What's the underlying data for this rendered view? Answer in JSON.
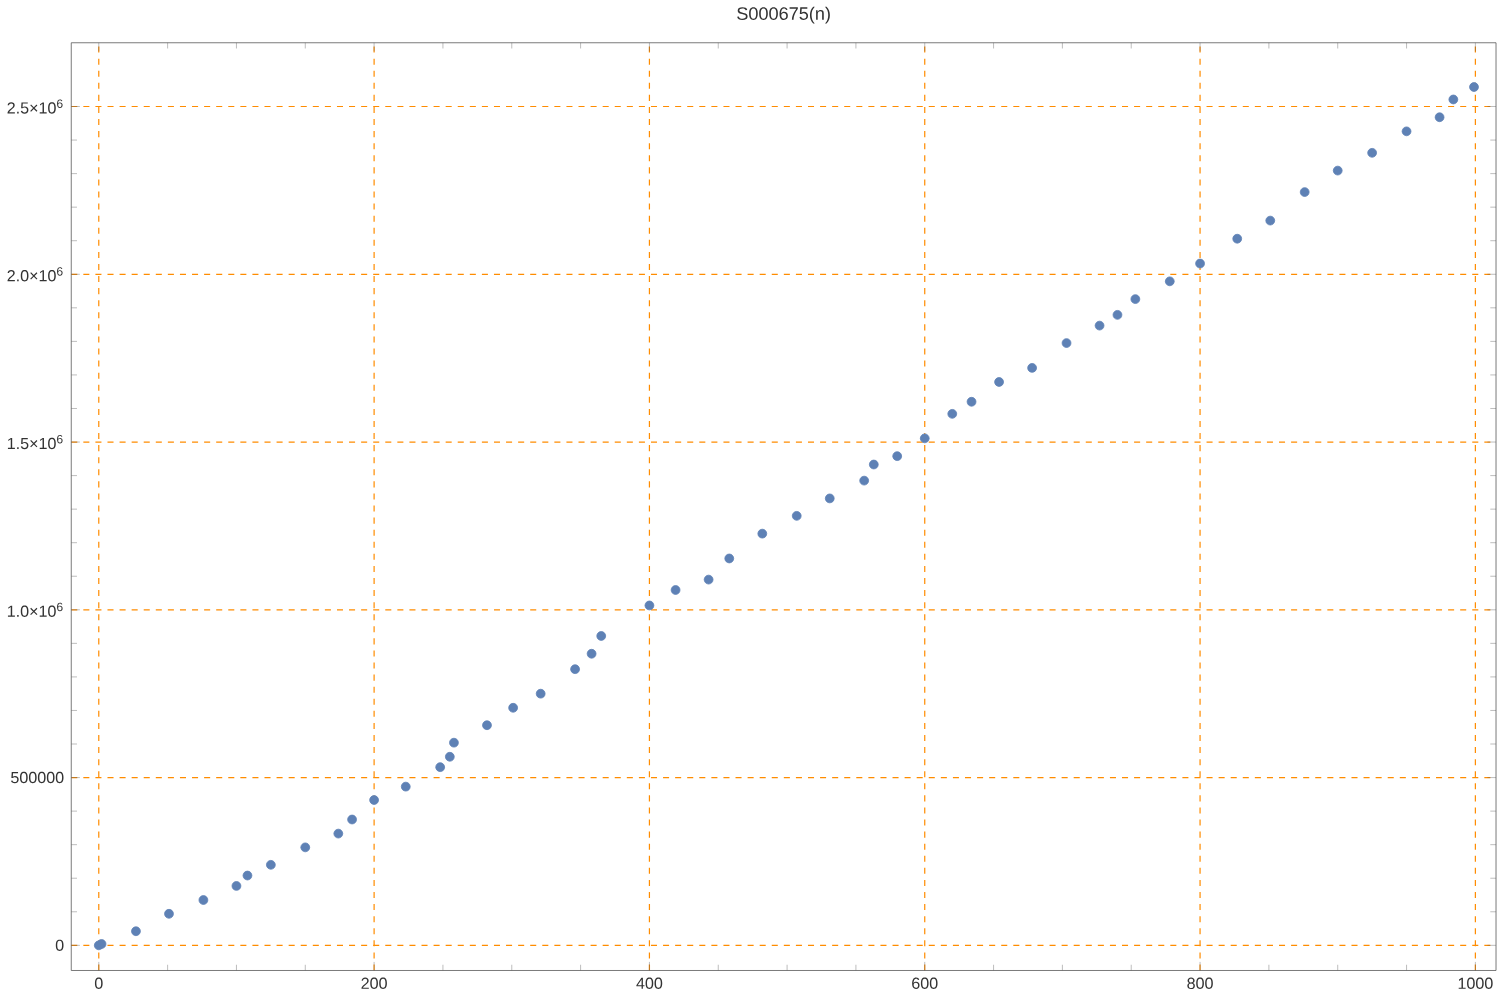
{
  "chart_data": {
    "type": "scatter",
    "title": "S000675(n)",
    "x": [
      0,
      2,
      27,
      51,
      76,
      100,
      108,
      125,
      150,
      174,
      184,
      200,
      223,
      248,
      255,
      258,
      282,
      301,
      321,
      346,
      358,
      365,
      400,
      419,
      443,
      458,
      482,
      507,
      531,
      556,
      563,
      580,
      600,
      620,
      634,
      654,
      678,
      703,
      727,
      740,
      753,
      778,
      800,
      827,
      851,
      876,
      900,
      925,
      950,
      974,
      984,
      999
    ],
    "series": [
      {
        "color": "#5e81b5",
        "values": [
          0,
          4000,
          42000,
          94000,
          135000,
          177000,
          208000,
          240000,
          292000,
          333000,
          375000,
          433000,
          473000,
          531000,
          562000,
          604000,
          656000,
          708000,
          750000,
          823000,
          869000,
          922000,
          1013000,
          1059000,
          1090000,
          1153000,
          1227000,
          1280000,
          1332000,
          1385000,
          1433000,
          1458000,
          1511000,
          1584000,
          1620000,
          1679000,
          1721000,
          1795000,
          1847000,
          1879000,
          1926000,
          1979000,
          2032000,
          2106000,
          2160000,
          2245000,
          2309000,
          2362000,
          2426000,
          2468000,
          2521000,
          2558000
        ]
      }
    ],
    "xlim": [
      -20,
      1015
    ],
    "ylim": [
      -75000,
      2690000
    ],
    "xticks": [
      0,
      200,
      400,
      600,
      800,
      1000
    ],
    "yticks": [
      0,
      500000,
      {
        "value": 1000000,
        "label": "1.0×10$^{6}$"
      },
      {
        "value": 1500000,
        "label": "1.5×10$^{6}$"
      },
      {
        "value": 2000000,
        "label": "2.0×10$^{6}$"
      },
      {
        "value": 2500000,
        "label": "2.5×10$^{6}$"
      }
    ],
    "grid": true
  }
}
